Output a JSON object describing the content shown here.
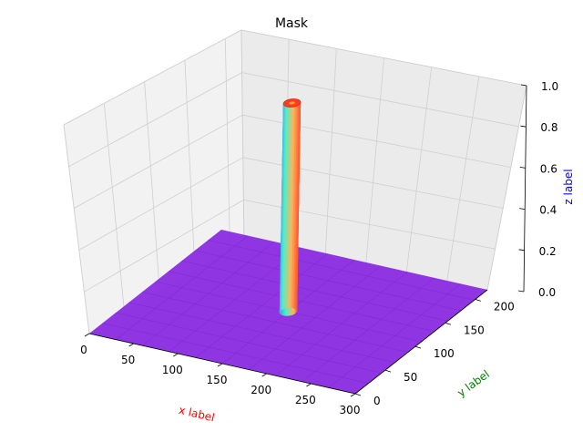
{
  "chart_data": {
    "type": "surface3d",
    "title": "Mask",
    "xlabel": "x label",
    "ylabel": "y label",
    "zlabel": "z label",
    "xlabel_color": "#ff0000",
    "ylabel_color": "#008000",
    "zlabel_color": "#0000ff",
    "xlim": [
      0,
      300
    ],
    "ylim": [
      0,
      220
    ],
    "zlim": [
      0,
      1
    ],
    "xticks": [
      "0",
      "50",
      "100",
      "150",
      "200",
      "250",
      "300"
    ],
    "yticks": [
      "0",
      "50",
      "100",
      "150",
      "200"
    ],
    "zticks": [
      "0.0",
      "0.2",
      "0.4",
      "0.6",
      "0.8",
      "1.0"
    ],
    "grid": true,
    "colormap": "rainbow",
    "base_color": "#8a2be2",
    "surface": {
      "description_values": "binary mask: z = 1 inside a circular disk, z = 0 elsewhere",
      "disk_center": [
        150,
        110
      ],
      "disk_radius": 8,
      "inside_value": 1,
      "outside_value": 0
    }
  }
}
